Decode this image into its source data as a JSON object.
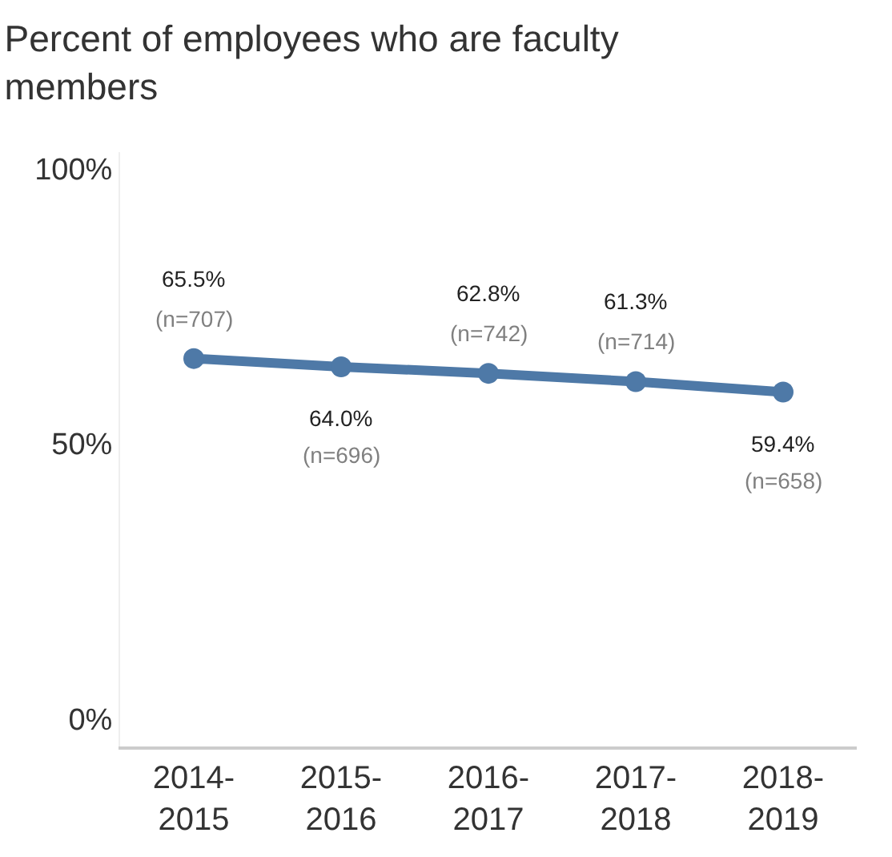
{
  "chart_data": {
    "type": "line",
    "title": "Percent of employees who are faculty members",
    "categories": [
      "2014-2015",
      "2015-2016",
      "2016-2017",
      "2017-2018",
      "2018-2019"
    ],
    "series": [
      {
        "color": "#4e79a7",
        "values": [
          65.5,
          64.0,
          62.8,
          61.3,
          59.4
        ],
        "value_labels": [
          "65.5%",
          "64.0%",
          "62.8%",
          "61.3%",
          "59.4%"
        ]
      }
    ],
    "annotations": [
      "(n=707)",
      "(n=696)",
      "(n=742)",
      "(n=714)",
      "(n=658)"
    ],
    "ylim": [
      -5,
      103
    ],
    "yticks": [
      {
        "value": 0,
        "label": "0%"
      },
      {
        "value": 50,
        "label": "50%"
      },
      {
        "value": 100,
        "label": "100%"
      }
    ],
    "legend": false,
    "marker": "circle",
    "line_style": "solid"
  }
}
